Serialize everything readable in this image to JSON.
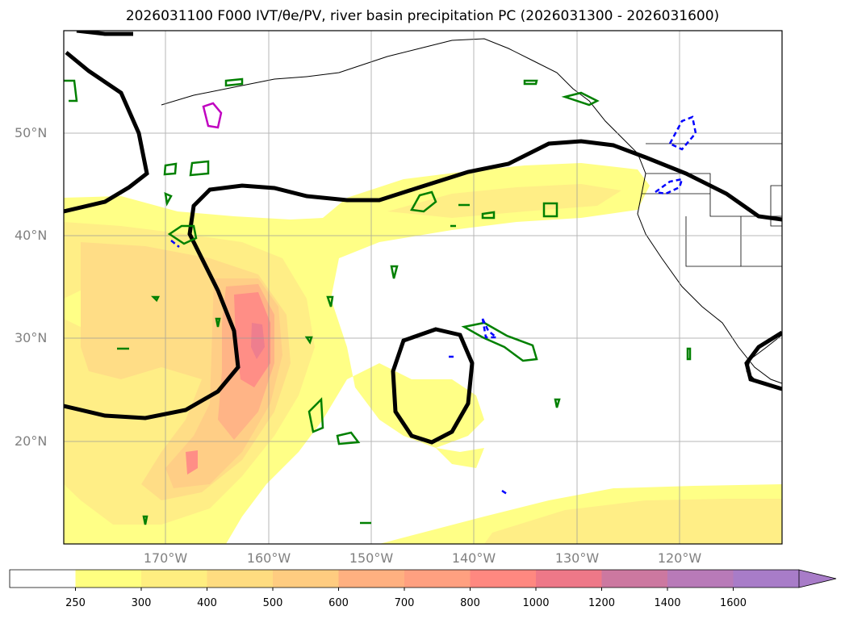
{
  "title": "2026031100 F000 IVT/θe/PV, river basin precipitation PC (2026031300 - 2026031600)",
  "lat_labels": [
    "50°N",
    "40°N",
    "30°N",
    "20°N"
  ],
  "lon_labels": [
    "170°W",
    "160°W",
    "150°W",
    "140°W",
    "130°W",
    "120°W"
  ],
  "colorbar": {
    "ticks": [
      "250",
      "300",
      "400",
      "500",
      "600",
      "700",
      "800",
      "1000",
      "1200",
      "1400",
      "1600"
    ],
    "colors": [
      "#ffffff",
      "#ffff80",
      "#ffee80",
      "#ffdc80",
      "#ffcc80",
      "#ffb080",
      "#ffa080",
      "#ff8880",
      "#ee7888",
      "#cc78a0",
      "#b87ab8",
      "#a87cc8"
    ],
    "extend": "max"
  },
  "map": {
    "lat_range": [
      10,
      60
    ],
    "lon_range": [
      -180,
      -110
    ],
    "ivt_colors": [
      "#ffff80",
      "#ffee80",
      "#ffdc80",
      "#ffcc80",
      "#ffb080",
      "#ff8880"
    ],
    "contour_colors": {
      "black": "#000000",
      "green": "#008000",
      "blue": "#0000ff",
      "magenta": "#c000c0"
    }
  }
}
